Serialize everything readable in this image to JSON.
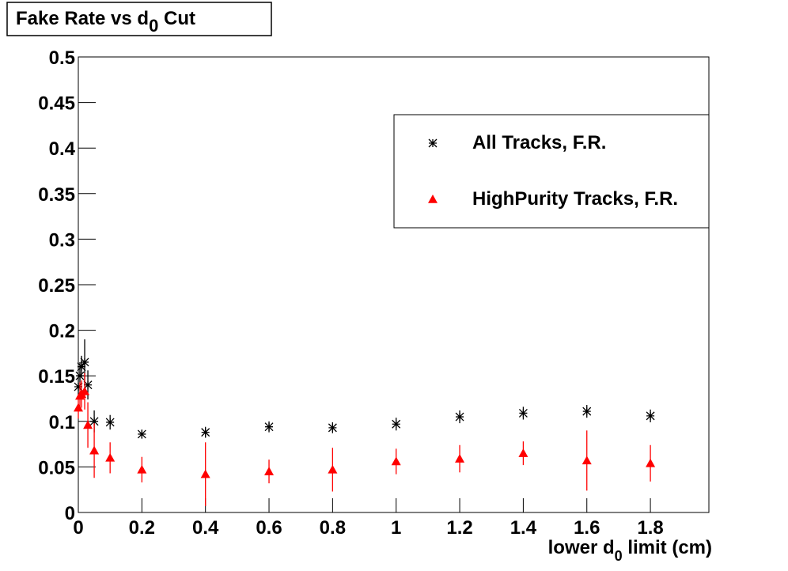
{
  "chart_data": {
    "type": "scatter",
    "title": {
      "text": "Fake Rate vs d",
      "sub": "0",
      "after": " Cut"
    },
    "x_label": {
      "text": "lower d",
      "sub": "0",
      "after": " limit (cm)"
    },
    "x": [
      0,
      0.005,
      0.01,
      0.02,
      0.03,
      0.05,
      0.1,
      0.2,
      0.4,
      0.6,
      0.8,
      1.0,
      1.2,
      1.4,
      1.6,
      1.8
    ],
    "series": [
      {
        "name": "All Tracks, F.R.",
        "color": "#000000",
        "marker": "star",
        "values": [
          0.138,
          0.15,
          0.16,
          0.165,
          0.14,
          0.1,
          0.099,
          0.086,
          0.088,
          0.094,
          0.093,
          0.097,
          0.105,
          0.109,
          0.111,
          0.106
        ],
        "errors": [
          0.012,
          0.015,
          0.012,
          0.025,
          0.016,
          0.012,
          0.008,
          0.005,
          0.006,
          0.006,
          0.006,
          0.007,
          0.007,
          0.007,
          0.007,
          0.007
        ]
      },
      {
        "name": "HighPurity Tracks, F.R.",
        "color": "#ff0000",
        "marker": "triangle",
        "values": [
          0.115,
          0.128,
          0.13,
          0.133,
          0.096,
          0.068,
          0.06,
          0.047,
          0.042,
          0.045,
          0.047,
          0.056,
          0.059,
          0.065,
          0.057,
          0.054
        ],
        "errors": [
          0.012,
          0.015,
          0.015,
          0.02,
          0.025,
          0.03,
          0.017,
          0.014,
          0.035,
          0.013,
          0.024,
          0.014,
          0.015,
          0.013,
          0.033,
          0.02
        ]
      }
    ],
    "xlim": [
      0,
      1.984
    ],
    "ylim": [
      0,
      0.5
    ],
    "xticks": [
      0,
      0.2,
      0.4,
      0.6,
      0.8,
      1,
      1.2,
      1.4,
      1.6,
      1.8
    ],
    "yticks": [
      0,
      0.05,
      0.1,
      0.15,
      0.2,
      0.25,
      0.3,
      0.35,
      0.4,
      0.45,
      0.5
    ],
    "legend": "top-right"
  }
}
